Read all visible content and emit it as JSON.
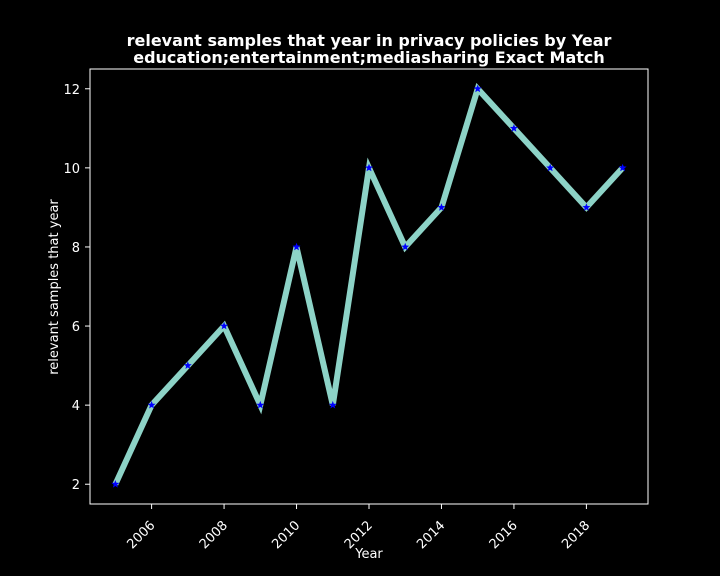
{
  "chart_data": {
    "type": "line",
    "title": "relevant samples that year in privacy policies by Year",
    "subtitle": "education;entertainment;mediasharing Exact Match",
    "xlabel": "Year",
    "ylabel": "relevant samples that year",
    "x": [
      2005,
      2006,
      2007,
      2008,
      2009,
      2010,
      2011,
      2012,
      2013,
      2014,
      2015,
      2016,
      2017,
      2018,
      2019
    ],
    "series": [
      {
        "values": [
          2,
          4,
          5,
          6,
          4,
          8,
          4,
          10,
          8,
          9,
          12,
          11,
          10,
          9,
          10
        ]
      }
    ],
    "x_ticks": [
      2006,
      2008,
      2010,
      2012,
      2014,
      2016,
      2018
    ],
    "y_ticks": [
      2,
      4,
      6,
      8,
      10,
      12
    ],
    "xlim": [
      2004.3,
      2019.7
    ],
    "ylim": [
      1.5,
      12.5
    ],
    "line_color": "#8dd3c7",
    "marker_color": "#0000ff",
    "marker": "star",
    "background": "#000000",
    "grid": false,
    "legend": "none"
  }
}
